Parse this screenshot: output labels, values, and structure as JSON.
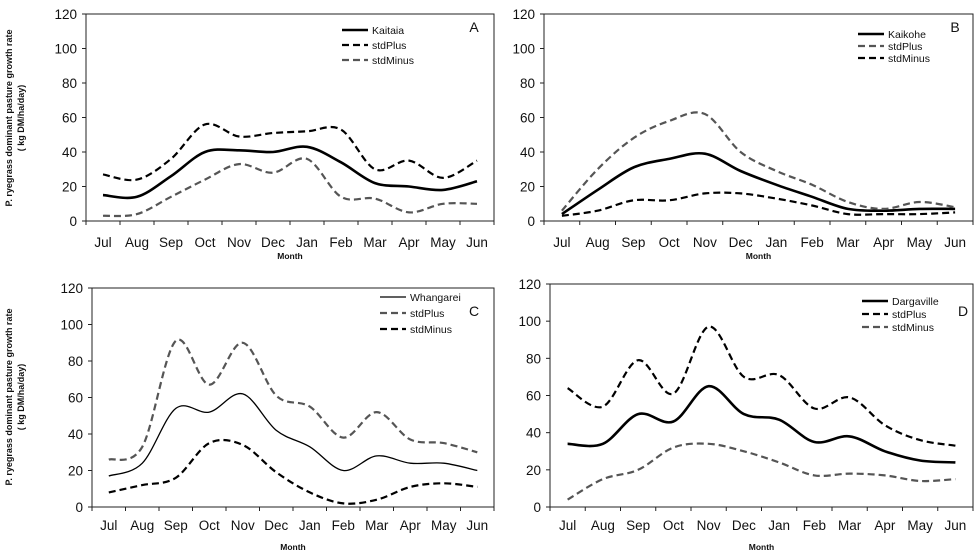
{
  "y_axis_title_line1": "P. ryegrass dominant pasture growth rate",
  "y_axis_title_line2": "( kg DM/ha/day)",
  "colors": {
    "mean": "#000000",
    "dark_dash": "#000000",
    "grey_dash": "#555555"
  },
  "chart_data": [
    {
      "type": "line",
      "panel": "A",
      "title": "",
      "categories": [
        "Jul",
        "Aug",
        "Sep",
        "Oct",
        "Nov",
        "Dec",
        "Jan",
        "Feb",
        "Mar",
        "Apr",
        "May",
        "Jun"
      ],
      "xlabel": "Month",
      "ylabel": "",
      "ylim": [
        0,
        120
      ],
      "yticks": [
        0,
        20,
        40,
        60,
        80,
        100,
        120
      ],
      "legend_position": "top-right",
      "series": [
        {
          "name": "Kaitaia",
          "style": "solid-thick",
          "color": "#000000",
          "values": [
            15,
            14,
            26,
            40,
            41,
            40,
            43,
            34,
            22,
            20,
            18,
            23
          ]
        },
        {
          "name": "stdPlus",
          "style": "dash",
          "color": "#000000",
          "values": [
            27,
            24,
            36,
            56,
            49,
            51,
            52,
            53,
            30,
            35,
            25,
            35
          ]
        },
        {
          "name": "stdMinus",
          "style": "dash",
          "color": "#555555",
          "values": [
            3,
            4,
            14,
            24,
            33,
            28,
            36,
            14,
            13,
            5,
            10,
            10
          ]
        }
      ]
    },
    {
      "type": "line",
      "panel": "B",
      "title": "",
      "categories": [
        "Jul",
        "Aug",
        "Sep",
        "Oct",
        "Nov",
        "Dec",
        "Jan",
        "Feb",
        "Mar",
        "Apr",
        "May",
        "Jun"
      ],
      "xlabel": "Month",
      "ylabel": "",
      "ylim": [
        0,
        120
      ],
      "yticks": [
        0,
        20,
        40,
        60,
        80,
        100,
        120
      ],
      "legend_position": "top-right",
      "series": [
        {
          "name": "Kaikohe",
          "style": "solid-thick",
          "color": "#000000",
          "values": [
            4,
            18,
            31,
            36,
            39,
            29,
            21,
            14,
            7,
            6,
            7,
            7
          ]
        },
        {
          "name": "stdPlus",
          "style": "dash",
          "color": "#555555",
          "values": [
            6,
            30,
            48,
            58,
            62,
            40,
            29,
            21,
            11,
            7,
            11,
            8
          ]
        },
        {
          "name": "stdMinus",
          "style": "dash",
          "color": "#000000",
          "values": [
            3,
            6,
            12,
            12,
            16,
            16,
            13,
            9,
            4,
            4,
            4,
            5
          ]
        }
      ]
    },
    {
      "type": "line",
      "panel": "C",
      "title": "",
      "categories": [
        "Jul",
        "Aug",
        "Sep",
        "Oct",
        "Nov",
        "Dec",
        "Jan",
        "Feb",
        "Mar",
        "Apr",
        "May",
        "Jun"
      ],
      "xlabel": "Month",
      "ylabel": "",
      "ylim": [
        0,
        120
      ],
      "yticks": [
        0,
        20,
        40,
        60,
        80,
        100,
        120
      ],
      "legend_position": "top-right",
      "series": [
        {
          "name": "Whangarei",
          "style": "solid-thin",
          "color": "#000000",
          "values": [
            17,
            24,
            54,
            52,
            62,
            42,
            33,
            20,
            28,
            24,
            24,
            20
          ]
        },
        {
          "name": "stdPlus",
          "style": "dash",
          "color": "#555555",
          "values": [
            26,
            33,
            91,
            67,
            90,
            61,
            55,
            38,
            52,
            37,
            35,
            30
          ]
        },
        {
          "name": "stdMinus",
          "style": "dash",
          "color": "#000000",
          "values": [
            8,
            12,
            16,
            35,
            34,
            19,
            8,
            2,
            4,
            11,
            13,
            11
          ]
        }
      ]
    },
    {
      "type": "line",
      "panel": "D",
      "title": "",
      "categories": [
        "Jul",
        "Aug",
        "Sep",
        "Oct",
        "Nov",
        "Dec",
        "Jan",
        "Feb",
        "Mar",
        "Apr",
        "May",
        "Jun"
      ],
      "xlabel": "Month",
      "ylabel": "",
      "ylim": [
        0,
        120
      ],
      "yticks": [
        0,
        20,
        40,
        60,
        80,
        100,
        120
      ],
      "legend_position": "top-right",
      "series": [
        {
          "name": "Dargaville",
          "style": "solid-thick",
          "color": "#000000",
          "values": [
            34,
            34,
            50,
            46,
            65,
            50,
            47,
            35,
            38,
            30,
            25,
            24
          ]
        },
        {
          "name": "stdPlus",
          "style": "dash",
          "color": "#000000",
          "values": [
            64,
            54,
            79,
            61,
            97,
            70,
            71,
            53,
            59,
            44,
            36,
            33
          ]
        },
        {
          "name": "stdMinus",
          "style": "dash",
          "color": "#555555",
          "values": [
            4,
            15,
            20,
            32,
            34,
            30,
            24,
            17,
            18,
            17,
            14,
            15
          ]
        }
      ]
    }
  ]
}
